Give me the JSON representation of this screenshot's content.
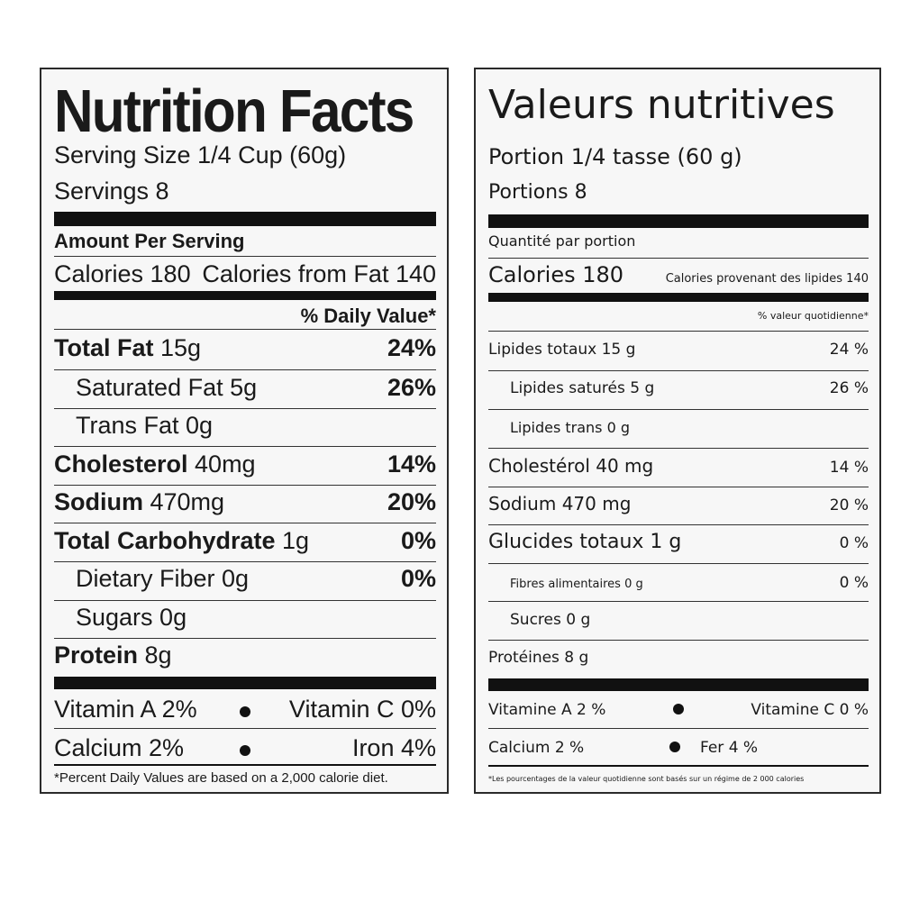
{
  "english": {
    "title": "Nutrition Facts",
    "serving_size": "Serving Size 1/4 Cup (60g)",
    "servings": "Servings 8",
    "amount_per_serving": "Amount Per Serving",
    "calories": "Calories 180",
    "calories_from_fat": "Calories from Fat 140",
    "daily_value_header": "% Daily Value*",
    "rows": [
      {
        "name": "Total Fat",
        "amount": " 15g",
        "dv": "24%"
      },
      {
        "name": "Saturated Fat 5g",
        "amount": "",
        "dv": "26%"
      },
      {
        "name": "Trans Fat 0g",
        "amount": "",
        "dv": ""
      },
      {
        "name": "Cholesterol",
        "amount": " 40mg",
        "dv": "14%"
      },
      {
        "name": "Sodium",
        "amount": " 470mg",
        "dv": "20%"
      },
      {
        "name": "Total Carbohydrate",
        "amount": " 1g",
        "dv": "0%"
      },
      {
        "name": "Dietary Fiber 0g",
        "amount": "",
        "dv": "0%"
      },
      {
        "name": "Sugars 0g",
        "amount": "",
        "dv": ""
      },
      {
        "name": "Protein",
        "amount": " 8g",
        "dv": ""
      }
    ],
    "vitamins": [
      {
        "left": "Vitamin A 2%",
        "right": "Vitamin C 0%"
      },
      {
        "left": "Calcium 2%",
        "right": "Iron 4%"
      }
    ],
    "footnote": "*Percent Daily Values are based on a 2,000 calorie diet."
  },
  "french": {
    "title": "Valeurs nutritives",
    "serving_size": "Portion 1/4 tasse (60 g)",
    "servings": "Portions 8",
    "amount_per_serving": "Quantité par portion",
    "calories": "Calories 180",
    "calories_from_fat": "Calories provenant des lipides 140",
    "daily_value_header": "% valeur quotidienne*",
    "rows": [
      {
        "name": "Lipides totaux 15 g",
        "dv": "24 %"
      },
      {
        "name": "Lipides saturés 5 g",
        "dv": "26 %"
      },
      {
        "name": "Lipides trans 0 g",
        "dv": ""
      },
      {
        "name": "Cholestérol 40 mg",
        "dv": "14 %"
      },
      {
        "name": "Sodium 470 mg",
        "dv": "20 %"
      },
      {
        "name": "Glucides totaux 1 g",
        "dv": "0 %"
      },
      {
        "name": "Fibres alimentaires 0 g",
        "dv": "0 %"
      },
      {
        "name": "Sucres 0 g",
        "dv": ""
      },
      {
        "name": "Protéines 8 g",
        "dv": ""
      }
    ],
    "vitamins": [
      {
        "left": "Vitamine A 2 %",
        "right": "Vitamine C 0 %"
      },
      {
        "left": "Calcium 2 %",
        "right": "Fer 4 %"
      }
    ],
    "footnote": "*Les pourcentages de la valeur quotidienne sont basés sur un régime de 2 000 calories"
  }
}
